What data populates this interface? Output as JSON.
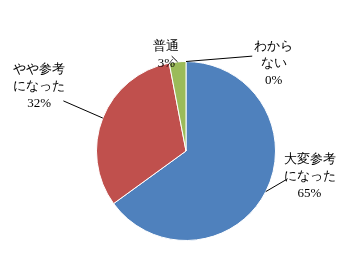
{
  "chart_data": {
    "type": "pie",
    "categories": [
      "大変参考になった",
      "やや参考になった",
      "普通",
      "わからない"
    ],
    "values": [
      65,
      32,
      3,
      0
    ],
    "value_labels": [
      "65%",
      "32%",
      "3%",
      "0%"
    ],
    "colors": [
      "#4f81bd",
      "#c0504d",
      "#9bbb59",
      "#8064a2"
    ],
    "data_labels": true
  }
}
